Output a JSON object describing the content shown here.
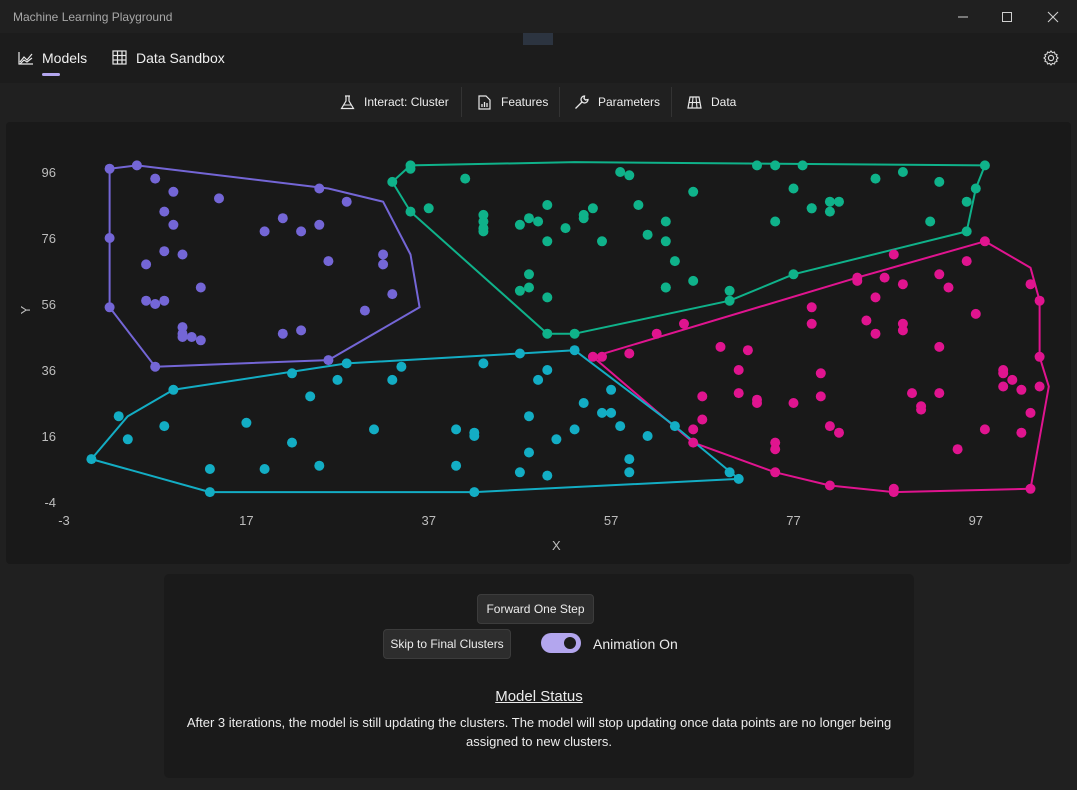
{
  "window": {
    "title": "Machine Learning Playground",
    "minimize_icon": "minimize-icon",
    "maximize_icon": "maximize-icon",
    "close_icon": "close-icon"
  },
  "nav": {
    "models_label": "Models",
    "sandbox_label": "Data Sandbox",
    "selected": "Models",
    "settings_icon": "gear-icon"
  },
  "toolbar": {
    "interact_label": "Interact: Cluster",
    "features_label": "Features",
    "parameters_label": "Parameters",
    "data_label": "Data"
  },
  "controls": {
    "forward_label": "Forward One Step",
    "skip_label": "Skip to Final Clusters",
    "animation_label": "Animation On",
    "animation_on": true,
    "status_title": "Model Status",
    "status_text": "After 3 iterations, the model is still updating the clusters. The model will stop updating once data points are no longer being assigned to new clusters."
  },
  "chart_data": {
    "type": "scatter",
    "xlabel": "X",
    "ylabel": "Y",
    "xlim": [
      -3,
      107
    ],
    "ylim": [
      -4,
      102
    ],
    "xticks": [
      -3,
      17,
      37,
      57,
      77,
      97
    ],
    "yticks": [
      -4,
      16,
      36,
      56,
      76,
      96
    ],
    "grid": false,
    "background": "#191919",
    "series": [
      {
        "color": "#7466d6",
        "points": [
          [
            2,
            97
          ],
          [
            5,
            98
          ],
          [
            7,
            94
          ],
          [
            9,
            90
          ],
          [
            14,
            88
          ],
          [
            8,
            84
          ],
          [
            9,
            80
          ],
          [
            21,
            82
          ],
          [
            23,
            78
          ],
          [
            25,
            80
          ],
          [
            19,
            78
          ],
          [
            8,
            72
          ],
          [
            10,
            71
          ],
          [
            6,
            68
          ],
          [
            26,
            69
          ],
          [
            12,
            61
          ],
          [
            6,
            57
          ],
          [
            7,
            56
          ],
          [
            8,
            57
          ],
          [
            10,
            49
          ],
          [
            10,
            47
          ],
          [
            10,
            46
          ],
          [
            11,
            46
          ],
          [
            12,
            45
          ],
          [
            21,
            47
          ],
          [
            23,
            48
          ],
          [
            33,
            59
          ],
          [
            32,
            71
          ],
          [
            32,
            68
          ],
          [
            30,
            54
          ],
          [
            7,
            37
          ],
          [
            26,
            39
          ],
          [
            28,
            87
          ],
          [
            25,
            91
          ],
          [
            2,
            55
          ],
          [
            2,
            76
          ]
        ],
        "hull": [
          [
            2,
            97
          ],
          [
            5,
            98
          ],
          [
            26,
            91
          ],
          [
            32,
            87
          ],
          [
            35,
            71
          ],
          [
            36,
            55
          ],
          [
            26,
            39
          ],
          [
            7,
            37
          ],
          [
            2,
            55
          ],
          [
            2,
            76
          ]
        ]
      },
      {
        "color": "#0fb28a",
        "points": [
          [
            35,
            98
          ],
          [
            35,
            97
          ],
          [
            33,
            93
          ],
          [
            35,
            84
          ],
          [
            37,
            85
          ],
          [
            41,
            94
          ],
          [
            43,
            83
          ],
          [
            43,
            81
          ],
          [
            43,
            79
          ],
          [
            43,
            78
          ],
          [
            47,
            80
          ],
          [
            48,
            82
          ],
          [
            49,
            81
          ],
          [
            50,
            86
          ],
          [
            50,
            75
          ],
          [
            52,
            79
          ],
          [
            54,
            82
          ],
          [
            55,
            85
          ],
          [
            54,
            83
          ],
          [
            56,
            75
          ],
          [
            58,
            96
          ],
          [
            59,
            95
          ],
          [
            60,
            86
          ],
          [
            61,
            77
          ],
          [
            63,
            81
          ],
          [
            63,
            75
          ],
          [
            63,
            61
          ],
          [
            63,
            61
          ],
          [
            64,
            69
          ],
          [
            66,
            63
          ],
          [
            66,
            90
          ],
          [
            70,
            57
          ],
          [
            70,
            60
          ],
          [
            73,
            98
          ],
          [
            75,
            98
          ],
          [
            75,
            81
          ],
          [
            77,
            91
          ],
          [
            78,
            98
          ],
          [
            79,
            85
          ],
          [
            79,
            85
          ],
          [
            81,
            84
          ],
          [
            81,
            87
          ],
          [
            82,
            87
          ],
          [
            86,
            94
          ],
          [
            89,
            96
          ],
          [
            92,
            81
          ],
          [
            93,
            93
          ],
          [
            96,
            87
          ],
          [
            97,
            91
          ],
          [
            98,
            98
          ],
          [
            96,
            78
          ],
          [
            48,
            65
          ],
          [
            48,
            61
          ],
          [
            50,
            58
          ],
          [
            50,
            47
          ],
          [
            53,
            47
          ],
          [
            47,
            60
          ],
          [
            77,
            65
          ]
        ],
        "hull": [
          [
            35,
            98
          ],
          [
            53,
            99
          ],
          [
            98,
            98
          ],
          [
            97,
            91
          ],
          [
            96,
            78
          ],
          [
            77,
            65
          ],
          [
            70,
            57
          ],
          [
            53,
            47
          ],
          [
            50,
            47
          ],
          [
            35,
            84
          ],
          [
            33,
            93
          ]
        ]
      },
      {
        "color": "#e0148f",
        "points": [
          [
            55,
            40
          ],
          [
            56,
            40
          ],
          [
            59,
            41
          ],
          [
            62,
            47
          ],
          [
            65,
            50
          ],
          [
            66,
            14
          ],
          [
            66,
            18
          ],
          [
            67,
            28
          ],
          [
            67,
            21
          ],
          [
            69,
            43
          ],
          [
            71,
            36
          ],
          [
            71,
            29
          ],
          [
            72,
            42
          ],
          [
            73,
            26
          ],
          [
            73,
            27
          ],
          [
            75,
            14
          ],
          [
            75,
            12
          ],
          [
            77,
            26
          ],
          [
            79,
            50
          ],
          [
            79,
            55
          ],
          [
            80,
            35
          ],
          [
            80,
            28
          ],
          [
            81,
            19
          ],
          [
            82,
            17
          ],
          [
            84,
            64
          ],
          [
            84,
            63
          ],
          [
            85,
            51
          ],
          [
            86,
            58
          ],
          [
            86,
            47
          ],
          [
            87,
            64
          ],
          [
            88,
            71
          ],
          [
            89,
            50
          ],
          [
            89,
            48
          ],
          [
            89,
            62
          ],
          [
            90,
            29
          ],
          [
            91,
            25
          ],
          [
            91,
            24
          ],
          [
            93,
            65
          ],
          [
            93,
            29
          ],
          [
            93,
            43
          ],
          [
            94,
            61
          ],
          [
            95,
            12
          ],
          [
            96,
            69
          ],
          [
            97,
            53
          ],
          [
            98,
            18
          ],
          [
            100,
            36
          ],
          [
            100,
            35
          ],
          [
            100,
            31
          ],
          [
            101,
            33
          ],
          [
            102,
            17
          ],
          [
            102,
            30
          ],
          [
            103,
            62
          ],
          [
            103,
            23
          ],
          [
            104,
            57
          ],
          [
            104,
            40
          ],
          [
            104,
            31
          ],
          [
            98,
            75
          ],
          [
            88,
            0
          ],
          [
            88,
            -1
          ],
          [
            103,
            0
          ],
          [
            81,
            1
          ],
          [
            75,
            5
          ]
        ],
        "hull": [
          [
            55,
            40
          ],
          [
            84,
            64
          ],
          [
            98,
            75
          ],
          [
            103,
            67
          ],
          [
            104,
            57
          ],
          [
            104,
            40
          ],
          [
            105,
            31
          ],
          [
            103,
            0
          ],
          [
            88,
            -1
          ],
          [
            81,
            1
          ],
          [
            75,
            5
          ],
          [
            66,
            14
          ]
        ]
      },
      {
        "color": "#13adc4",
        "points": [
          [
            0,
            9
          ],
          [
            4,
            15
          ],
          [
            3,
            22
          ],
          [
            8,
            19
          ],
          [
            9,
            30
          ],
          [
            13,
            6
          ],
          [
            13,
            -1
          ],
          [
            17,
            20
          ],
          [
            19,
            6
          ],
          [
            22,
            14
          ],
          [
            22,
            35
          ],
          [
            24,
            28
          ],
          [
            25,
            7
          ],
          [
            27,
            33
          ],
          [
            28,
            38
          ],
          [
            31,
            18
          ],
          [
            33,
            33
          ],
          [
            34,
            37
          ],
          [
            40,
            7
          ],
          [
            40,
            18
          ],
          [
            42,
            16
          ],
          [
            42,
            17
          ],
          [
            42,
            -1
          ],
          [
            43,
            38
          ],
          [
            47,
            41
          ],
          [
            47,
            5
          ],
          [
            48,
            11
          ],
          [
            48,
            22
          ],
          [
            49,
            33
          ],
          [
            50,
            36
          ],
          [
            50,
            4
          ],
          [
            51,
            15
          ],
          [
            53,
            42
          ],
          [
            53,
            18
          ],
          [
            54,
            26
          ],
          [
            56,
            23
          ],
          [
            57,
            30
          ],
          [
            57,
            23
          ],
          [
            58,
            19
          ],
          [
            59,
            9
          ],
          [
            59,
            5
          ],
          [
            61,
            16
          ],
          [
            64,
            19
          ],
          [
            70,
            5
          ],
          [
            71,
            3
          ]
        ],
        "hull": [
          [
            0,
            9
          ],
          [
            4,
            22
          ],
          [
            9,
            30
          ],
          [
            28,
            38
          ],
          [
            47,
            41
          ],
          [
            53,
            42
          ],
          [
            64,
            19
          ],
          [
            71,
            3
          ],
          [
            42,
            -1
          ],
          [
            13,
            -1
          ]
        ]
      }
    ]
  }
}
